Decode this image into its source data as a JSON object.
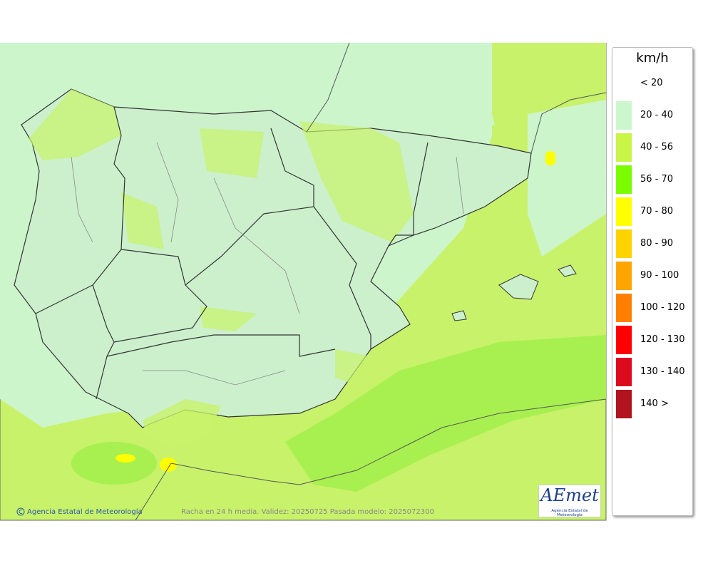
{
  "legend": {
    "title": "km/h",
    "items": [
      {
        "label": "< 20",
        "color": "#ffffff"
      },
      {
        "label": "20 - 40",
        "color": "#ccf7cc"
      },
      {
        "label": "40 - 56",
        "color": "#c8f546"
      },
      {
        "label": "56 - 70",
        "color": "#7cfc00"
      },
      {
        "label": "70 - 80",
        "color": "#ffff00"
      },
      {
        "label": "80 - 90",
        "color": "#ffd200"
      },
      {
        "label": "90 - 100",
        "color": "#ffa500"
      },
      {
        "label": "100 - 120",
        "color": "#ff8000"
      },
      {
        "label": "120 - 130",
        "color": "#ff0000"
      },
      {
        "label": "130 - 140",
        "color": "#dc0a1e"
      },
      {
        "label": "140 >",
        "color": "#b0141e"
      }
    ]
  },
  "footer": {
    "credit": "Agencia Estatal de Meteorología",
    "caption": "Racha en 24 h media. Validez: 20250725 Pasada modelo: 2025072300"
  },
  "logo": {
    "text": "AEmet",
    "subtitle": "Agencia Estatal de Meteorología"
  }
}
